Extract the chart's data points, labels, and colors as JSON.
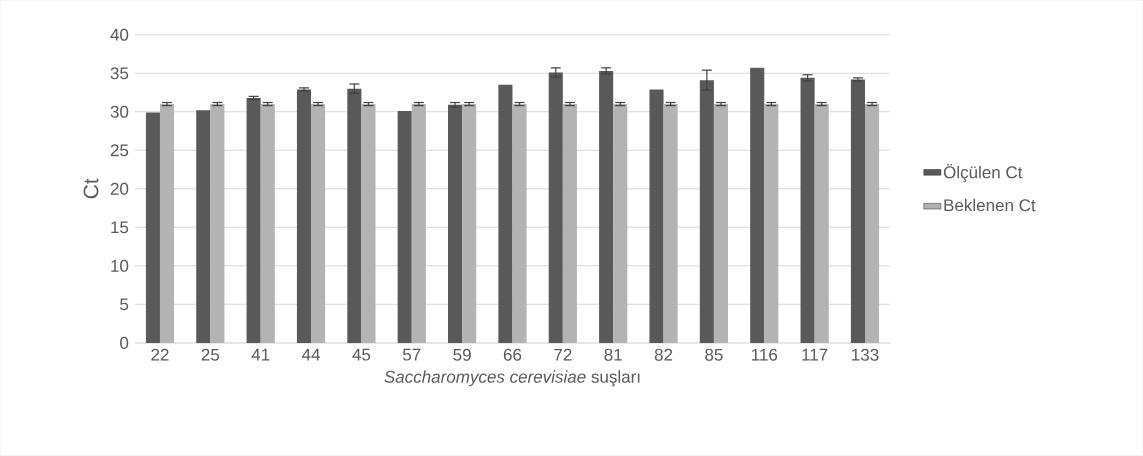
{
  "chart_data": {
    "type": "bar",
    "xlabel": "*Saccharomyces cerevisiae* suşları",
    "ylabel": "Ct",
    "categories": [
      "22",
      "25",
      "41",
      "44",
      "45",
      "57",
      "59",
      "66",
      "72",
      "81",
      "82",
      "85",
      "116",
      "117",
      "133"
    ],
    "series": [
      {
        "name": "Ölçülen Ct",
        "color": "#595959",
        "values": [
          29.9,
          30.2,
          31.8,
          32.9,
          33.0,
          30.1,
          30.9,
          33.5,
          35.1,
          35.3,
          32.9,
          34.1,
          35.7,
          34.4,
          34.2
        ],
        "errors": [
          null,
          null,
          0.2,
          0.2,
          0.6,
          null,
          0.3,
          null,
          0.6,
          0.4,
          null,
          1.3,
          null,
          0.4,
          0.2
        ]
      },
      {
        "name": "Beklenen Ct",
        "color": "#b3b3b3",
        "values": [
          31,
          31,
          31,
          31,
          31,
          31,
          31,
          31,
          31,
          31,
          31,
          31,
          31,
          31,
          31
        ],
        "errors": [
          0.2,
          0.2,
          0.2,
          0.2,
          0.2,
          0.2,
          0.2,
          0.2,
          0.2,
          0.2,
          0.2,
          0.2,
          0.2,
          0.2,
          0.2
        ]
      }
    ],
    "ylim": [
      0,
      40
    ],
    "yticks": [
      0,
      5,
      10,
      15,
      20,
      25,
      30,
      35,
      40
    ],
    "grid": "y",
    "legend": "right"
  }
}
